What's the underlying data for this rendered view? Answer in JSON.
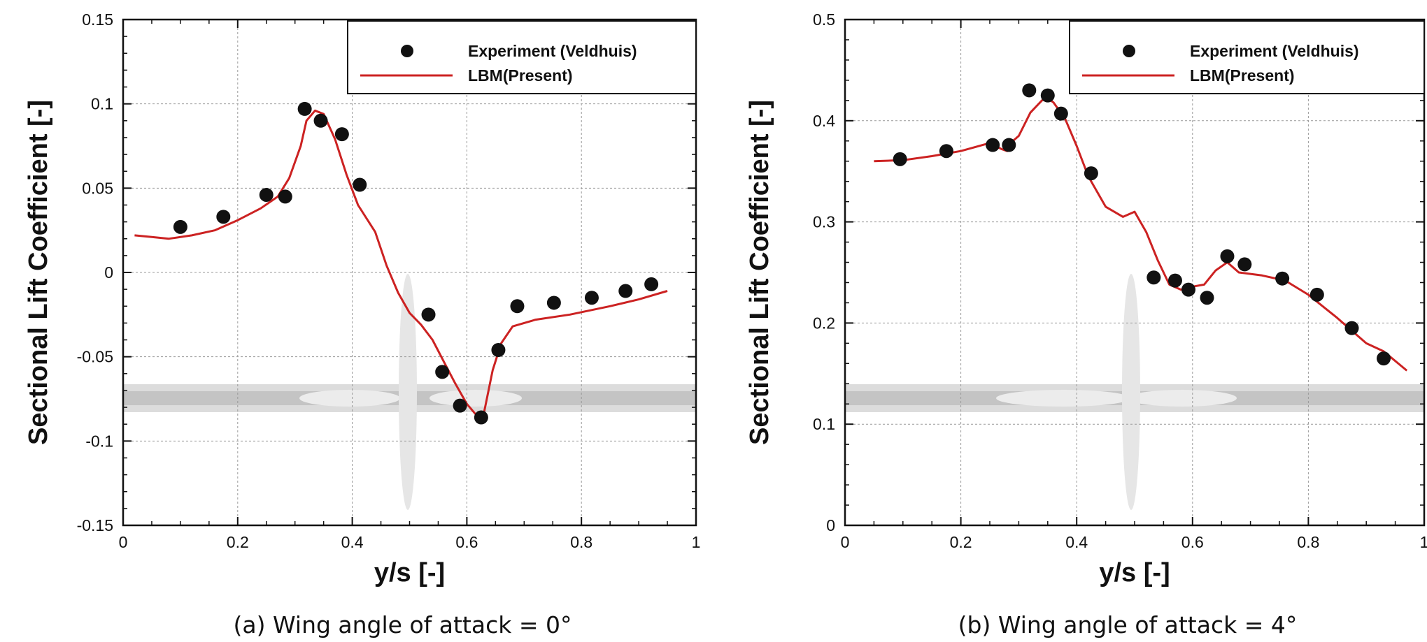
{
  "chart_data": [
    {
      "type": "line",
      "caption": "(a) Wing angle of attack = 0°",
      "xlabel": "y/s [-]",
      "ylabel": "Sectional Lift Coefficient [-]",
      "xlim": [
        0,
        1
      ],
      "ylim": [
        -0.15,
        0.15
      ],
      "xticks": [
        0,
        0.2,
        0.4,
        0.6,
        0.8,
        1
      ],
      "xtick_labels": [
        "0",
        "0.2",
        "0.4",
        "0.6",
        "0.8",
        "1"
      ],
      "yticks": [
        -0.15,
        -0.1,
        -0.05,
        0,
        0.05,
        0.1,
        0.15
      ],
      "ytick_labels": [
        "-0.15",
        "-0.1",
        "-0.05",
        "0",
        "0.05",
        "0.1",
        "0.15"
      ],
      "grid": true,
      "legend_position": "top-right",
      "series": [
        {
          "name": "Experiment (Veldhuis)",
          "kind": "scatter",
          "color": "#111111",
          "x": [
            0.1,
            0.175,
            0.25,
            0.283,
            0.317,
            0.345,
            0.382,
            0.413,
            0.533,
            0.557,
            0.588,
            0.625,
            0.655,
            0.688,
            0.752,
            0.818,
            0.877,
            0.922
          ],
          "y": [
            0.027,
            0.033,
            0.046,
            0.045,
            0.097,
            0.09,
            0.082,
            0.052,
            -0.025,
            -0.059,
            -0.079,
            -0.086,
            -0.046,
            -0.02,
            -0.018,
            -0.015,
            -0.011,
            -0.007
          ]
        },
        {
          "name": "LBM(Present)",
          "kind": "line",
          "color": "#cc2222",
          "x": [
            0.02,
            0.05,
            0.08,
            0.12,
            0.16,
            0.2,
            0.24,
            0.27,
            0.29,
            0.31,
            0.32,
            0.335,
            0.35,
            0.37,
            0.39,
            0.41,
            0.44,
            0.46,
            0.48,
            0.5,
            0.52,
            0.54,
            0.56,
            0.58,
            0.6,
            0.615,
            0.63,
            0.645,
            0.66,
            0.68,
            0.72,
            0.78,
            0.85,
            0.9,
            0.95
          ],
          "y": [
            0.022,
            0.021,
            0.02,
            0.022,
            0.025,
            0.031,
            0.038,
            0.045,
            0.056,
            0.075,
            0.09,
            0.096,
            0.094,
            0.079,
            0.058,
            0.04,
            0.024,
            0.004,
            -0.012,
            -0.024,
            -0.031,
            -0.04,
            -0.053,
            -0.066,
            -0.078,
            -0.084,
            -0.083,
            -0.058,
            -0.042,
            -0.032,
            -0.028,
            -0.025,
            -0.02,
            -0.016,
            -0.011
          ]
        }
      ]
    },
    {
      "type": "line",
      "caption": "(b) Wing angle of attack = 4°",
      "xlabel": "y/s [-]",
      "ylabel": "Sectional Lift Coefficient [-]",
      "xlim": [
        0,
        1
      ],
      "ylim": [
        0,
        0.5
      ],
      "xticks": [
        0,
        0.2,
        0.4,
        0.6,
        0.8,
        1
      ],
      "xtick_labels": [
        "0",
        "0.2",
        "0.4",
        "0.6",
        "0.8",
        "1"
      ],
      "yticks": [
        0,
        0.1,
        0.2,
        0.3,
        0.4,
        0.5
      ],
      "ytick_labels": [
        "0",
        "0.1",
        "0.2",
        "0.3",
        "0.4",
        "0.5"
      ],
      "grid": true,
      "legend_position": "top-right",
      "series": [
        {
          "name": "Experiment (Veldhuis)",
          "kind": "scatter",
          "color": "#111111",
          "x": [
            0.095,
            0.175,
            0.255,
            0.283,
            0.318,
            0.35,
            0.373,
            0.425,
            0.533,
            0.57,
            0.593,
            0.625,
            0.66,
            0.69,
            0.755,
            0.815,
            0.875,
            0.93
          ],
          "y": [
            0.362,
            0.37,
            0.376,
            0.376,
            0.43,
            0.425,
            0.407,
            0.348,
            0.245,
            0.242,
            0.233,
            0.225,
            0.266,
            0.258,
            0.244,
            0.228,
            0.195,
            0.165
          ]
        },
        {
          "name": "LBM(Present)",
          "kind": "line",
          "color": "#cc2222",
          "x": [
            0.05,
            0.1,
            0.15,
            0.2,
            0.25,
            0.27,
            0.28,
            0.29,
            0.3,
            0.32,
            0.34,
            0.35,
            0.36,
            0.38,
            0.4,
            0.42,
            0.45,
            0.48,
            0.5,
            0.52,
            0.54,
            0.56,
            0.58,
            0.6,
            0.62,
            0.64,
            0.66,
            0.68,
            0.72,
            0.76,
            0.8,
            0.85,
            0.9,
            0.93,
            0.97
          ],
          "y": [
            0.36,
            0.361,
            0.365,
            0.37,
            0.378,
            0.372,
            0.37,
            0.38,
            0.385,
            0.408,
            0.42,
            0.422,
            0.418,
            0.402,
            0.375,
            0.345,
            0.315,
            0.305,
            0.31,
            0.29,
            0.262,
            0.238,
            0.233,
            0.236,
            0.238,
            0.252,
            0.26,
            0.25,
            0.247,
            0.242,
            0.228,
            0.205,
            0.18,
            0.172,
            0.153
          ]
        }
      ]
    }
  ]
}
